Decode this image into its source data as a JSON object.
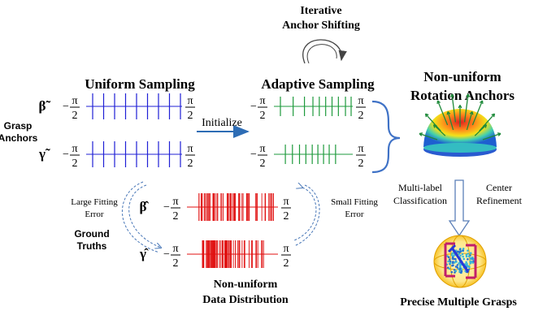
{
  "titles": {
    "uniform": "Uniform Sampling",
    "adaptive": "Adaptive Sampling",
    "iterative_line1": "Iterative",
    "iterative_line2": "Anchor Shifting",
    "nonuniform_rot_line1": "Non-uniform",
    "nonuniform_rot_line2": "Rotation Anchors",
    "nonuniform_data_line1": "Non-uniform",
    "nonuniform_data_line2": "Data Distribution",
    "precise": "Precise Multiple Grasps"
  },
  "labels": {
    "grasp_line1": "Grasp",
    "grasp_line2": "Anchors",
    "ground_line1": "Ground",
    "ground_line2": "Truths",
    "initialize": "Initialize",
    "large_fit_line1": "Large Fitting",
    "large_fit_line2": "Error",
    "small_fit_line1": "Small Fitting",
    "small_fit_line2": "Error",
    "multilabel_line1": "Multi-label",
    "multilabel_line2": "Classification",
    "center_line1": "Center",
    "center_line2": "Refinement"
  },
  "symbols": {
    "beta_tilde": "β̃",
    "gamma_tilde": "γ̃",
    "beta_hat": "β̂",
    "gamma_hat": "γ̂",
    "minus": "−",
    "pi": "π",
    "two": "2"
  },
  "colors": {
    "uniform": "#1f1fd6",
    "adaptive": "#1e9a3c",
    "data": "#e01010",
    "arrow_blue": "#2e6db5",
    "bracket": "#3f72c6"
  }
}
